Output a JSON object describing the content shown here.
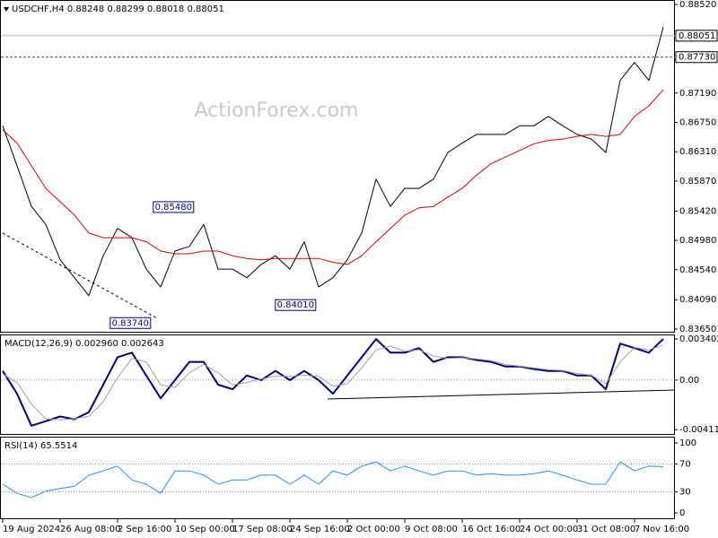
{
  "chart_data": [
    {
      "type": "line",
      "title": "USDCHF,H4 0.88248 0.88299 0.88018 0.88051",
      "watermark": "ActionForex.com",
      "xlim": [
        0,
        46.375
      ],
      "ylim": [
        0.83609,
        0.88587
      ],
      "yticks": [
        {
          "value": 0.8852,
          "label": "0.88520"
        },
        {
          "value": 0.8769,
          "label": "0.87690"
        },
        {
          "value": 0.8719,
          "label": "0.87190"
        },
        {
          "value": 0.8675,
          "label": "0.86750"
        },
        {
          "value": 0.8631,
          "label": "0.86310"
        },
        {
          "value": 0.8587,
          "label": "0.85870"
        },
        {
          "value": 0.8542,
          "label": "0.85420"
        },
        {
          "value": 0.8498,
          "label": "0.84980"
        },
        {
          "value": 0.8454,
          "label": "0.84540"
        },
        {
          "value": 0.8409,
          "label": "0.84090"
        },
        {
          "value": 0.8365,
          "label": "0.83650"
        }
      ],
      "price_lines": [
        {
          "value": 0.88051,
          "label": "0.88051",
          "style": "solid",
          "color": "#b0b0b0"
        },
        {
          "value": 0.8773,
          "label": "0.87730",
          "style": "dashed",
          "color": "#404040"
        }
      ],
      "annotations": [
        {
          "x": 13.3,
          "value": 0.8548,
          "label": "0.85480"
        },
        {
          "x": 10.3,
          "value": 0.8374,
          "label": "0.83740"
        },
        {
          "x": 21.8,
          "value": 0.8401,
          "label": "0.84010"
        }
      ],
      "series": [
        {
          "color": "#000000",
          "line_width": 1,
          "values": [
            0.867,
            0.861,
            0.8549,
            0.8522,
            0.8469,
            0.8442,
            0.8415,
            0.8475,
            0.8516,
            0.8502,
            0.8455,
            0.8428,
            0.8482,
            0.8489,
            0.8522,
            0.8455,
            0.8455,
            0.8442,
            0.8462,
            0.8475,
            0.8455,
            0.8496,
            0.8428,
            0.8442,
            0.8469,
            0.8509,
            0.859,
            0.8549,
            0.8576,
            0.8576,
            0.859,
            0.863,
            0.8644,
            0.8657,
            0.8657,
            0.8657,
            0.867,
            0.867,
            0.8684,
            0.867,
            0.8657,
            0.865,
            0.863,
            0.8738,
            0.8765,
            0.8738,
            0.8818
          ]
        },
        {
          "color": "#e00000",
          "line_width": 1,
          "values": [
            0.8664,
            0.8644,
            0.861,
            0.8576,
            0.8556,
            0.8536,
            0.8509,
            0.8502,
            0.8502,
            0.8502,
            0.8496,
            0.8482,
            0.8478,
            0.8478,
            0.8482,
            0.8482,
            0.8475,
            0.8471,
            0.8469,
            0.8471,
            0.8471,
            0.8471,
            0.8471,
            0.8465,
            0.8462,
            0.8475,
            0.8496,
            0.8516,
            0.8536,
            0.8547,
            0.8549,
            0.8563,
            0.8576,
            0.8596,
            0.8613,
            0.8623,
            0.8633,
            0.8643,
            0.8648,
            0.865,
            0.8654,
            0.8657,
            0.8654,
            0.8657,
            0.8684,
            0.87,
            0.8724
          ]
        }
      ]
    },
    {
      "type": "line",
      "title": "MACD(12,26,9) 0.002960 0.002643",
      "xlim": [
        0,
        46.375
      ],
      "ylim": [
        -0.00454,
        0.00378
      ],
      "yticks": [
        0.003402,
        {
          "value": 0,
          "label": "0.00"
        },
        -0.00411
      ],
      "levels": [
        0
      ],
      "series": [
        {
          "color": "#000080",
          "line_width": 2,
          "values": [
            0.00076,
            -0.00113,
            -0.00378,
            -0.0034,
            -0.00302,
            -0.00325,
            -0.00265,
            -0.00038,
            0.00189,
            0.00227,
            0.00038,
            -0.00151,
            0,
            0.00151,
            0.00151,
            -0.00038,
            -0.00076,
            0.00038,
            0,
            0.00076,
            0,
            0.00076,
            0,
            -0.00113,
            0.00038,
            0.00189,
            0.0034,
            0.00227,
            0.00227,
            0.00265,
            0.00151,
            0.00189,
            0.00189,
            0.00166,
            0.00151,
            0.00113,
            0.00113,
            0.00091,
            0.00076,
            0.00076,
            0.00038,
            0.00038,
            -0.00076,
            0.00302,
            0.00265,
            0.00227,
            0.0034
          ]
        },
        {
          "color": "#a0a0a0",
          "line_width": 1,
          "values": [
            0.0005,
            -0.0002,
            -0.002,
            -0.0032,
            -0.0033,
            -0.0032,
            -0.003,
            -0.0018,
            0.0002,
            0.0018,
            0.0015,
            -0.0004,
            -0.0006,
            0.0006,
            0.0013,
            0.0006,
            -0.0004,
            -0.0002,
            0.0001,
            0.0003,
            0.0003,
            0.0004,
            0.0003,
            -0.0005,
            -0.0003,
            0.001,
            0.0025,
            0.0028,
            0.0024,
            0.0025,
            0.002,
            0.0018,
            0.00185,
            0.00175,
            0.0016,
            0.0013,
            0.00115,
            0.001,
            0.00085,
            0.0008,
            0.00055,
            0.0004,
            -0.0003,
            0.0015,
            0.0027,
            0.0025,
            0.0029
          ]
        }
      ]
    },
    {
      "type": "line",
      "title": "RSI(14) 65.5514",
      "xlim": [
        0,
        46.375
      ],
      "ylim": [
        -7.7,
        109
      ],
      "yticks": [
        100,
        70,
        30,
        0
      ],
      "levels": [
        70,
        30
      ],
      "xticks": [
        {
          "value": 0,
          "label": "19 Aug 2024"
        },
        {
          "value": 4,
          "label": "26 Aug 08:00"
        },
        {
          "value": 8,
          "label": "2 Sep 16:00"
        },
        {
          "value": 12,
          "label": "10 Sep 00:00"
        },
        {
          "value": 16,
          "label": "17 Sep 08:00"
        },
        {
          "value": 20,
          "label": "24 Sep 16:00"
        },
        {
          "value": 24,
          "label": "2 Oct 00:00"
        },
        {
          "value": 28,
          "label": "9 Oct 08:00"
        },
        {
          "value": 32,
          "label": "16 Oct 16:00"
        },
        {
          "value": 36,
          "label": "24 Oct 00:00"
        },
        {
          "value": 40,
          "label": "31 Oct 08:00"
        },
        {
          "value": 44,
          "label": "7 Nov 16:00"
        }
      ],
      "series": [
        {
          "color": "#1e90ff",
          "line_width": 1,
          "values": [
            41,
            28,
            22,
            31,
            35,
            38,
            54,
            60,
            67,
            47,
            41,
            28,
            60,
            60,
            54,
            41,
            47,
            47,
            54,
            54,
            41,
            54,
            41,
            60,
            54,
            67,
            73,
            60,
            67,
            60,
            54,
            60,
            60,
            54,
            56,
            54,
            54,
            56,
            60,
            54,
            47,
            41,
            41,
            73,
            60,
            67,
            66
          ]
        }
      ]
    }
  ]
}
